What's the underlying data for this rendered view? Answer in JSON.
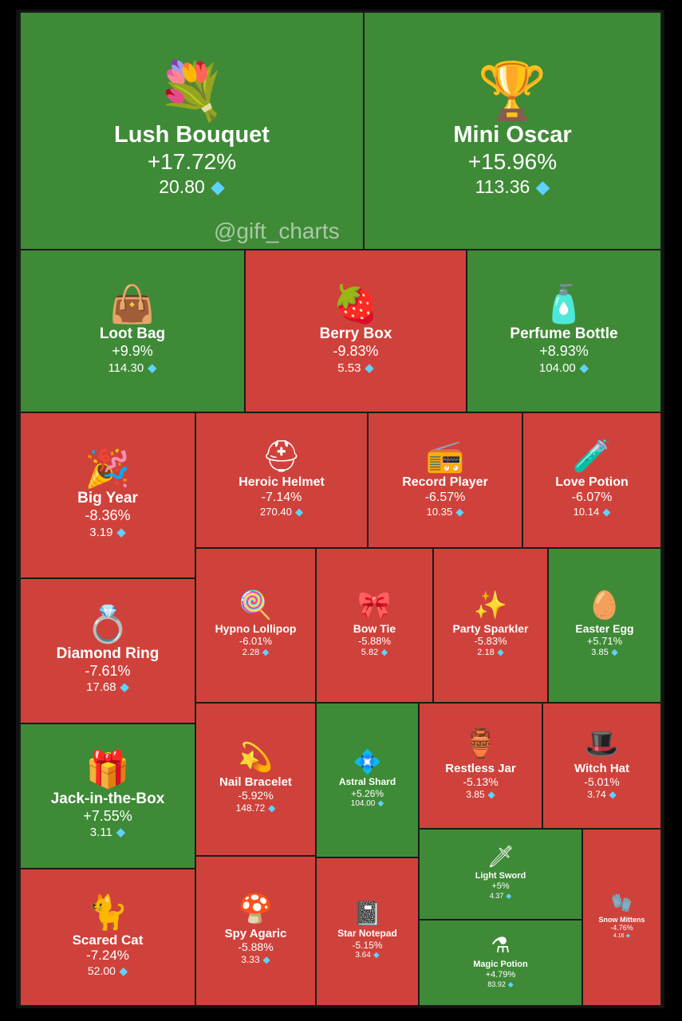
{
  "watermark": "@gift_charts",
  "colors": {
    "up": "#3f8a37",
    "down": "#cf423b",
    "gem": "#5fd3ff"
  },
  "chart_data": {
    "type": "treemap",
    "items": [
      {
        "name": "Lush Bouquet",
        "change": "+17.72%",
        "change_value": 17.72,
        "price": "20.80",
        "emoji": "💐"
      },
      {
        "name": "Mini Oscar",
        "change": "+15.96%",
        "change_value": 15.96,
        "price": "113.36",
        "emoji": "🏆"
      },
      {
        "name": "Loot Bag",
        "change": "+9.9%",
        "change_value": 9.9,
        "price": "114.30",
        "emoji": "👜"
      },
      {
        "name": "Berry Box",
        "change": "-9.83%",
        "change_value": -9.83,
        "price": "5.53",
        "emoji": "🍓"
      },
      {
        "name": "Perfume Bottle",
        "change": "+8.93%",
        "change_value": 8.93,
        "price": "104.00",
        "emoji": "🧴"
      },
      {
        "name": "Big Year",
        "change": "-8.36%",
        "change_value": -8.36,
        "price": "3.19",
        "emoji": "🎉"
      },
      {
        "name": "Heroic Helmet",
        "change": "-7.14%",
        "change_value": -7.14,
        "price": "270.40",
        "emoji": "⛑"
      },
      {
        "name": "Record Player",
        "change": "-6.57%",
        "change_value": -6.57,
        "price": "10.35",
        "emoji": "📻"
      },
      {
        "name": "Love Potion",
        "change": "-6.07%",
        "change_value": -6.07,
        "price": "10.14",
        "emoji": "🧪"
      },
      {
        "name": "Diamond Ring",
        "change": "-7.61%",
        "change_value": -7.61,
        "price": "17.68",
        "emoji": "💍"
      },
      {
        "name": "Hypno Lollipop",
        "change": "-6.01%",
        "change_value": -6.01,
        "price": "2.28",
        "emoji": "🍭"
      },
      {
        "name": "Bow Tie",
        "change": "-5.88%",
        "change_value": -5.88,
        "price": "5.82",
        "emoji": "🎀"
      },
      {
        "name": "Party Sparkler",
        "change": "-5.83%",
        "change_value": -5.83,
        "price": "2.18",
        "emoji": "✨"
      },
      {
        "name": "Easter Egg",
        "change": "+5.71%",
        "change_value": 5.71,
        "price": "3.85",
        "emoji": "🥚"
      },
      {
        "name": "Jack-in-the-Box",
        "change": "+7.55%",
        "change_value": 7.55,
        "price": "3.11",
        "emoji": "🎁"
      },
      {
        "name": "Nail Bracelet",
        "change": "-5.92%",
        "change_value": -5.92,
        "price": "148.72",
        "emoji": "💫"
      },
      {
        "name": "Astral Shard",
        "change": "+5.26%",
        "change_value": 5.26,
        "price": "104.00",
        "emoji": "💠"
      },
      {
        "name": "Restless Jar",
        "change": "-5.13%",
        "change_value": -5.13,
        "price": "3.85",
        "emoji": "🏺"
      },
      {
        "name": "Witch Hat",
        "change": "-5.01%",
        "change_value": -5.01,
        "price": "3.74",
        "emoji": "🎩"
      },
      {
        "name": "Light Sword",
        "change": "+5%",
        "change_value": 5,
        "price": "4.37",
        "emoji": "🗡"
      },
      {
        "name": "Snow Mittens",
        "change": "-4.76%",
        "change_value": -4.76,
        "price": "4.16",
        "emoji": "🧤"
      },
      {
        "name": "Scared Cat",
        "change": "-7.24%",
        "change_value": -7.24,
        "price": "52.00",
        "emoji": "🐈"
      },
      {
        "name": "Spy Agaric",
        "change": "-5.88%",
        "change_value": -5.88,
        "price": "3.33",
        "emoji": "🍄"
      },
      {
        "name": "Star Notepad",
        "change": "-5.15%",
        "change_value": -5.15,
        "price": "3.64",
        "emoji": "📓"
      },
      {
        "name": "Magic Potion",
        "change": "+4.79%",
        "change_value": 4.79,
        "price": "83.92",
        "emoji": "⚗"
      }
    ]
  }
}
